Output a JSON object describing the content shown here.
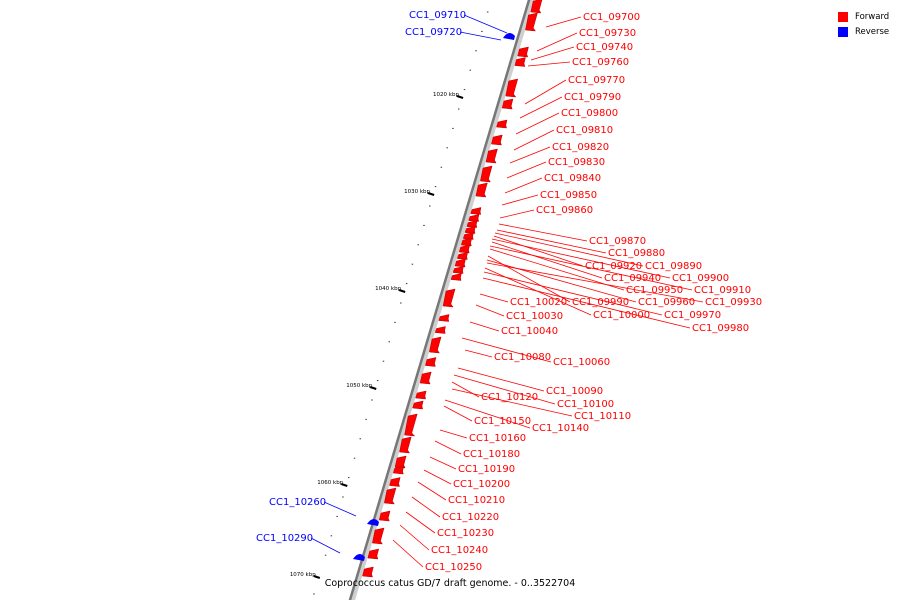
{
  "caption": "Coprococcus catus GD/7 draft genome. - 0..3522704",
  "legend": [
    {
      "label": "Forward",
      "color": "#ff0000"
    },
    {
      "label": "Reverse",
      "color": "#0000ff"
    }
  ],
  "scale_ticks": [
    "1020 kbp",
    "1030 kbp",
    "1040 kbp",
    "1050 kbp",
    "1060 kbp",
    "1070 kbp"
  ],
  "genes": [
    {
      "name": "CC1_09700",
      "strand": "forward"
    },
    {
      "name": "CC1_09710",
      "strand": "reverse"
    },
    {
      "name": "CC1_09720",
      "strand": "reverse"
    },
    {
      "name": "CC1_09730",
      "strand": "forward"
    },
    {
      "name": "CC1_09740",
      "strand": "forward"
    },
    {
      "name": "CC1_09760",
      "strand": "forward"
    },
    {
      "name": "CC1_09770",
      "strand": "forward"
    },
    {
      "name": "CC1_09790",
      "strand": "forward"
    },
    {
      "name": "CC1_09800",
      "strand": "forward"
    },
    {
      "name": "CC1_09810",
      "strand": "forward"
    },
    {
      "name": "CC1_09820",
      "strand": "forward"
    },
    {
      "name": "CC1_09830",
      "strand": "forward"
    },
    {
      "name": "CC1_09840",
      "strand": "forward"
    },
    {
      "name": "CC1_09850",
      "strand": "forward"
    },
    {
      "name": "CC1_09860",
      "strand": "forward"
    },
    {
      "name": "CC1_09870",
      "strand": "forward"
    },
    {
      "name": "CC1_09880",
      "strand": "forward"
    },
    {
      "name": "CC1_09920",
      "strand": "forward"
    },
    {
      "name": "CC1_09890",
      "strand": "forward"
    },
    {
      "name": "CC1_09940",
      "strand": "forward"
    },
    {
      "name": "CC1_09900",
      "strand": "forward"
    },
    {
      "name": "CC1_09950",
      "strand": "forward"
    },
    {
      "name": "CC1_09910",
      "strand": "forward"
    },
    {
      "name": "CC1_10020",
      "strand": "forward"
    },
    {
      "name": "CC1_09990",
      "strand": "forward"
    },
    {
      "name": "CC1_09960",
      "strand": "forward"
    },
    {
      "name": "CC1_09930",
      "strand": "forward"
    },
    {
      "name": "CC1_10030",
      "strand": "forward"
    },
    {
      "name": "CC1_10000",
      "strand": "forward"
    },
    {
      "name": "CC1_09970",
      "strand": "forward"
    },
    {
      "name": "CC1_09980",
      "strand": "forward"
    },
    {
      "name": "CC1_10040",
      "strand": "forward"
    },
    {
      "name": "CC1_10080",
      "strand": "forward"
    },
    {
      "name": "CC1_10060",
      "strand": "forward"
    },
    {
      "name": "CC1_10090",
      "strand": "forward"
    },
    {
      "name": "CC1_10120",
      "strand": "forward"
    },
    {
      "name": "CC1_10100",
      "strand": "forward"
    },
    {
      "name": "CC1_10110",
      "strand": "forward"
    },
    {
      "name": "CC1_10150",
      "strand": "forward"
    },
    {
      "name": "CC1_10140",
      "strand": "forward"
    },
    {
      "name": "CC1_10160",
      "strand": "forward"
    },
    {
      "name": "CC1_10180",
      "strand": "forward"
    },
    {
      "name": "CC1_10190",
      "strand": "forward"
    },
    {
      "name": "CC1_10200",
      "strand": "forward"
    },
    {
      "name": "CC1_10210",
      "strand": "forward"
    },
    {
      "name": "CC1_10260",
      "strand": "reverse"
    },
    {
      "name": "CC1_10220",
      "strand": "forward"
    },
    {
      "name": "CC1_10230",
      "strand": "forward"
    },
    {
      "name": "CC1_10290",
      "strand": "reverse"
    },
    {
      "name": "CC1_10240",
      "strand": "forward"
    },
    {
      "name": "CC1_10250",
      "strand": "forward"
    }
  ]
}
